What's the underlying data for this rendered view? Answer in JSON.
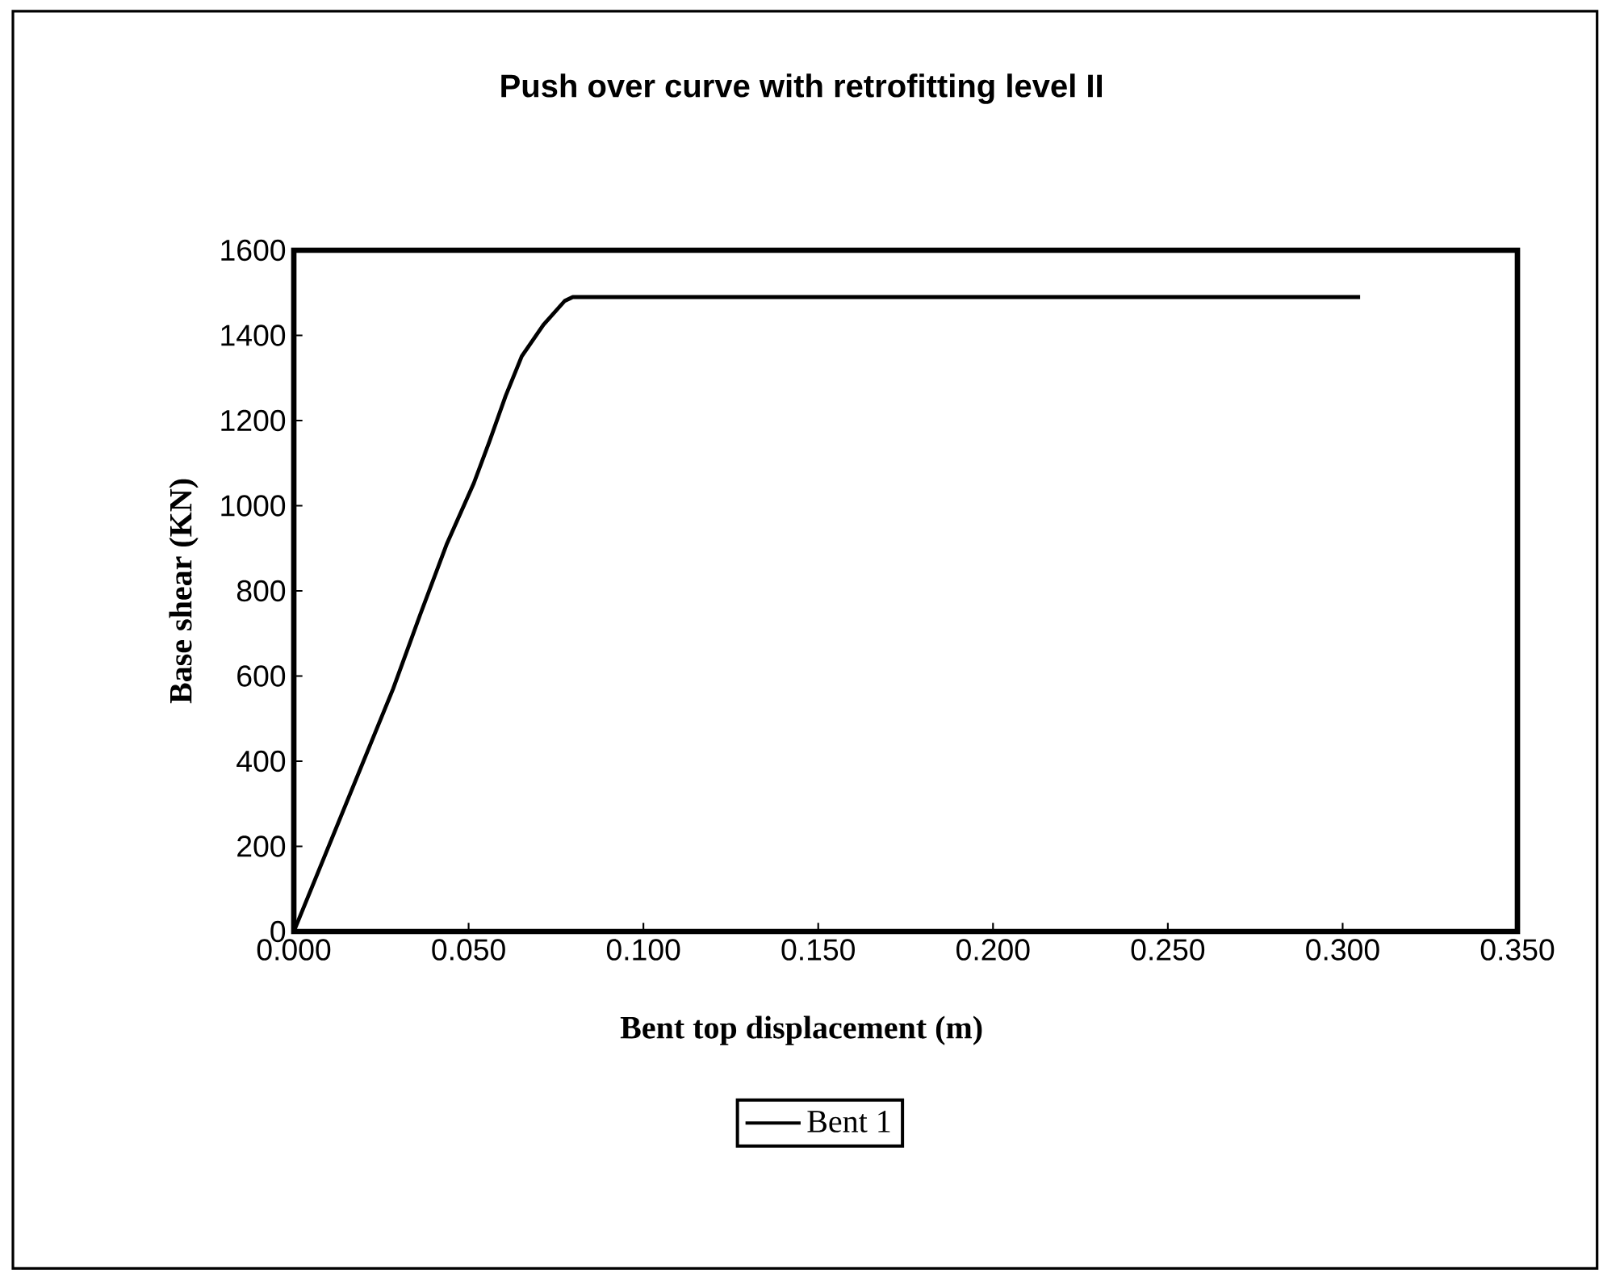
{
  "chart_data": {
    "type": "line",
    "title": "Push over curve with retrofitting level II",
    "xlabel": "Bent top displacement (m)",
    "ylabel": "Base shear (KN)",
    "xlim": [
      0,
      0.35
    ],
    "xticks": [
      {
        "value": 0,
        "label": "0.000"
      },
      {
        "value": 0.05,
        "label": "0.050"
      },
      {
        "value": 0.1,
        "label": "0.100"
      },
      {
        "value": 0.15,
        "label": "0.150"
      },
      {
        "value": 0.2,
        "label": "0.200"
      },
      {
        "value": 0.25,
        "label": "0.250"
      },
      {
        "value": 0.3,
        "label": "0.300"
      },
      {
        "value": 0.35,
        "label": "0.350"
      }
    ],
    "ylim": [
      0,
      1600
    ],
    "yticks": [
      0,
      200,
      400,
      600,
      800,
      1000,
      1200,
      1400,
      1600
    ],
    "grid": false,
    "legend": "bottom",
    "marker": "none",
    "line_style": "solid",
    "series": [
      {
        "name": "Bent 1",
        "color": "#000000",
        "x": [
          0,
          0.0284,
          0.0361,
          0.0438,
          0.0515,
          0.056,
          0.0606,
          0.0652,
          0.0714,
          0.0775,
          0.0798,
          0.305
        ],
        "values": [
          0,
          570,
          743,
          911,
          1053,
          1152,
          1258,
          1351,
          1425,
          1481,
          1490,
          1490
        ]
      }
    ]
  }
}
